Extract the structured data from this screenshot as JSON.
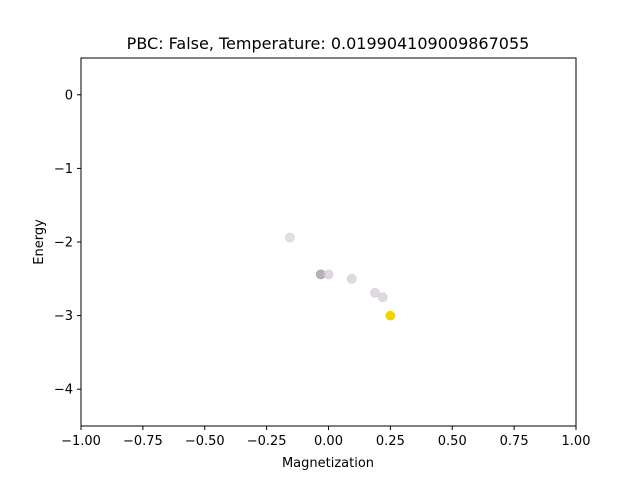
{
  "chart_data": {
    "type": "scatter",
    "title": "PBC: False, Temperature: 0.019904109009867055",
    "xlabel": "Magnetization",
    "ylabel": "Energy",
    "xlim": [
      -1.0,
      1.0
    ],
    "ylim": [
      -4.5,
      0.5
    ],
    "xticks": [
      -1.0,
      -0.75,
      -0.5,
      -0.25,
      0.0,
      0.25,
      0.5,
      0.75,
      1.0
    ],
    "xtick_labels": [
      "−1.00",
      "−0.75",
      "−0.50",
      "−0.25",
      "0.00",
      "0.25",
      "0.50",
      "0.75",
      "1.00"
    ],
    "yticks": [
      0,
      -1,
      -2,
      -3,
      -4
    ],
    "ytick_labels": [
      "0",
      "−1",
      "−2",
      "−3",
      "−4"
    ],
    "grid": false,
    "points": [
      {
        "x": -0.156,
        "y": -1.94,
        "color": "#d9d3dc",
        "opacity": 0.75
      },
      {
        "x": -0.031,
        "y": -2.44,
        "color": "#a89cab",
        "opacity": 0.8
      },
      {
        "x": 0.0,
        "y": -2.44,
        "color": "#d4ccd8",
        "opacity": 0.75
      },
      {
        "x": 0.094,
        "y": -2.5,
        "color": "#d4ccd8",
        "opacity": 0.75
      },
      {
        "x": 0.188,
        "y": -2.69,
        "color": "#d4ccd8",
        "opacity": 0.75
      },
      {
        "x": 0.219,
        "y": -2.75,
        "color": "#d4ccd8",
        "opacity": 0.75
      },
      {
        "x": 0.25,
        "y": -3.0,
        "color": "#f0d600",
        "opacity": 1.0
      }
    ]
  }
}
